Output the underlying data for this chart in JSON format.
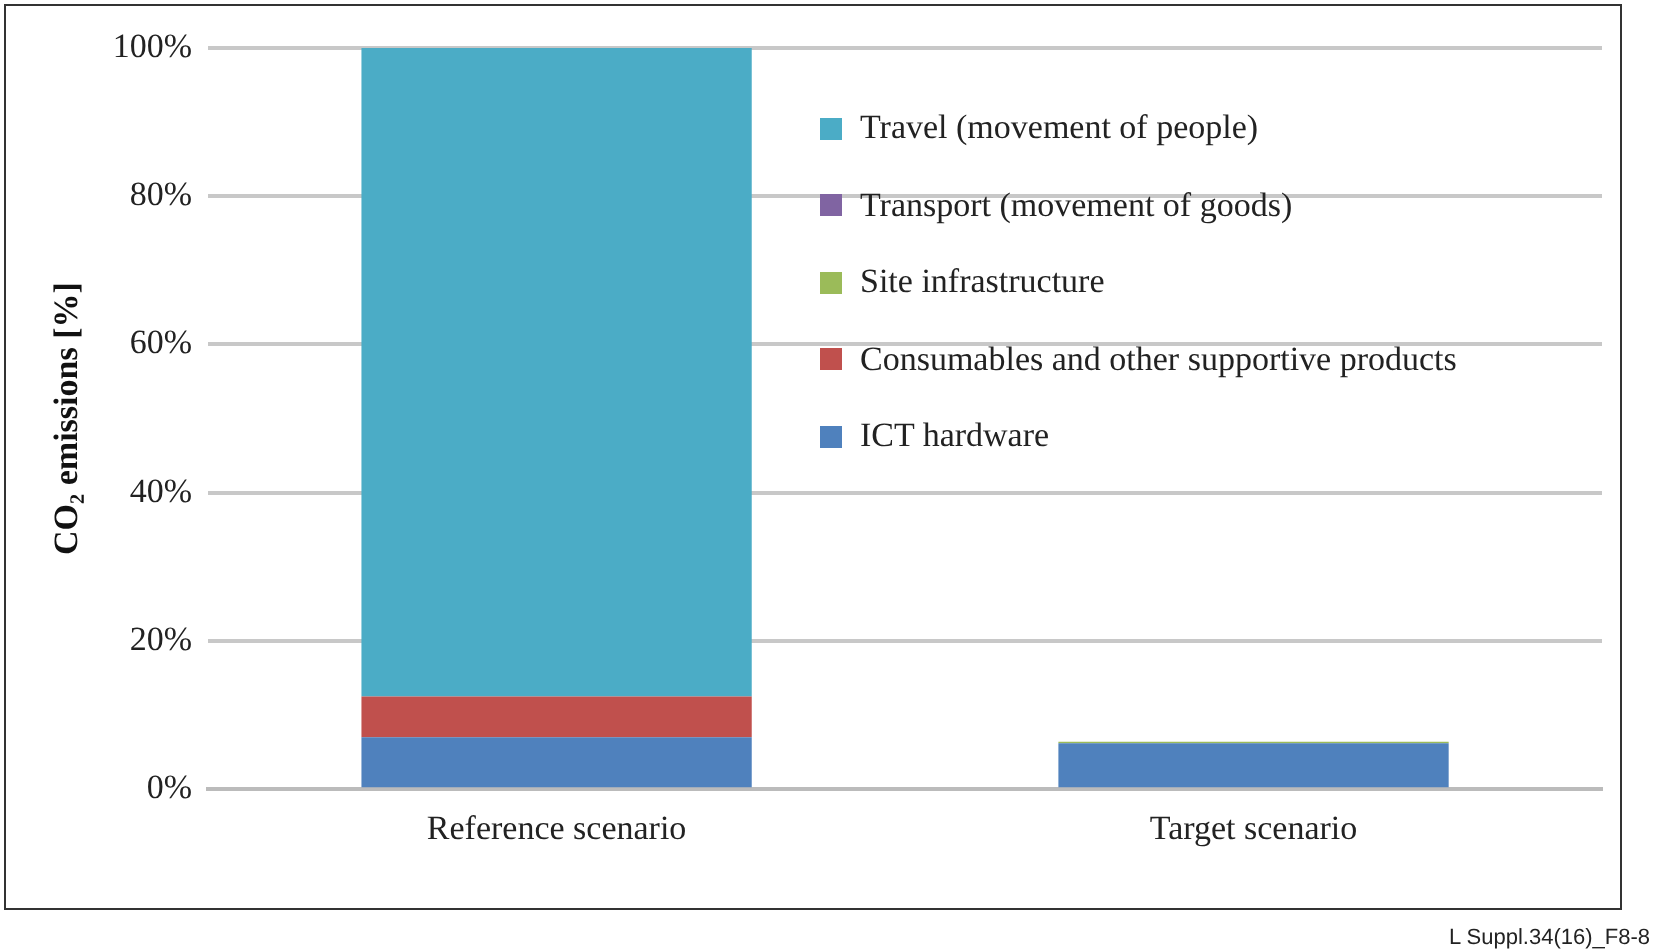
{
  "chart_data": {
    "type": "bar",
    "stacked": true,
    "ylabel": "CO₂ emissions [%]",
    "categories": [
      "Reference scenario",
      "Target scenario"
    ],
    "series": [
      {
        "name": "ICT hardware",
        "color": "#4f81bd",
        "values": [
          7,
          6.2
        ]
      },
      {
        "name": "Consumables and other supportive products",
        "color": "#c0504d",
        "values": [
          5.5,
          0
        ]
      },
      {
        "name": "Site infrastructure",
        "color": "#9bbb59",
        "values": [
          0,
          0.2
        ]
      },
      {
        "name": "Transport (movement of goods)",
        "color": "#8064a2",
        "values": [
          0,
          0
        ]
      },
      {
        "name": "Travel (movement of people)",
        "color": "#4bacc6",
        "values": [
          87.5,
          0
        ]
      }
    ],
    "ylim": [
      0,
      100
    ],
    "yticks": [
      {
        "value": 0,
        "label": "0%"
      },
      {
        "value": 20,
        "label": "20%"
      },
      {
        "value": 40,
        "label": "40%"
      },
      {
        "value": 60,
        "label": "60%"
      },
      {
        "value": 80,
        "label": "80%"
      },
      {
        "value": 100,
        "label": "100%"
      }
    ],
    "grid": "y",
    "legend": "right",
    "annotations": [
      "L Suppl.34(16)_F8-8"
    ]
  }
}
